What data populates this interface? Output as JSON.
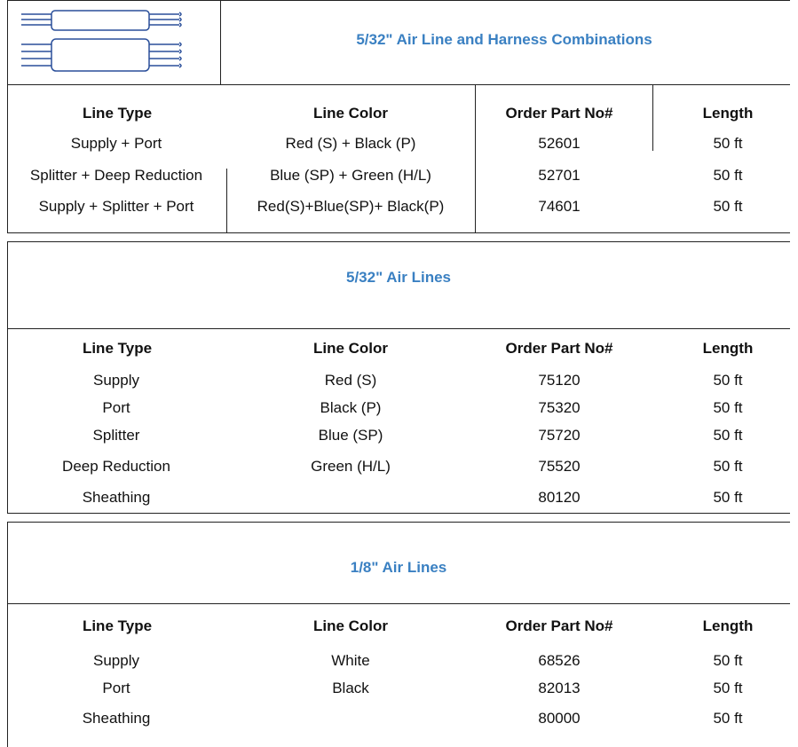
{
  "tables": [
    {
      "title": "5/32\" Air Line and Harness Combinations",
      "columns": [
        "Line Type",
        "Line Color",
        "Order Part No#",
        "Length"
      ],
      "rows": [
        [
          "Supply + Port",
          "Red (S) + Black (P)",
          "52601",
          "50 ft"
        ],
        [
          "Splitter + Deep Reduction",
          "Blue (SP) + Green (H/L)",
          "52701",
          "50 ft"
        ],
        [
          "Supply + Splitter + Port",
          "Red(S)+Blue(SP)+ Black(P)",
          "74601",
          "50 ft"
        ]
      ]
    },
    {
      "title": "5/32\" Air Lines",
      "columns": [
        "Line Type",
        "Line Color",
        "Order Part No#",
        "Length"
      ],
      "rows": [
        [
          "Supply",
          "Red (S)",
          "75120",
          "50 ft"
        ],
        [
          "Port",
          "Black (P)",
          "75320",
          "50 ft"
        ],
        [
          "Splitter",
          "Blue (SP)",
          "75720",
          "50 ft"
        ],
        [
          "Deep Reduction",
          "Green (H/L)",
          "75520",
          "50 ft"
        ],
        [
          "Sheathing",
          null,
          "80120",
          "50 ft"
        ]
      ]
    },
    {
      "title": "1/8\" Air Lines",
      "columns": [
        "Line Type",
        "Line Color",
        "Order Part No#",
        "Length"
      ],
      "rows": [
        [
          "Supply",
          "White",
          "68526",
          "50 ft"
        ],
        [
          "Port",
          "Black",
          "82013",
          "50 ft"
        ],
        [
          "Sheathing",
          null,
          "80000",
          "50 ft"
        ]
      ]
    }
  ]
}
